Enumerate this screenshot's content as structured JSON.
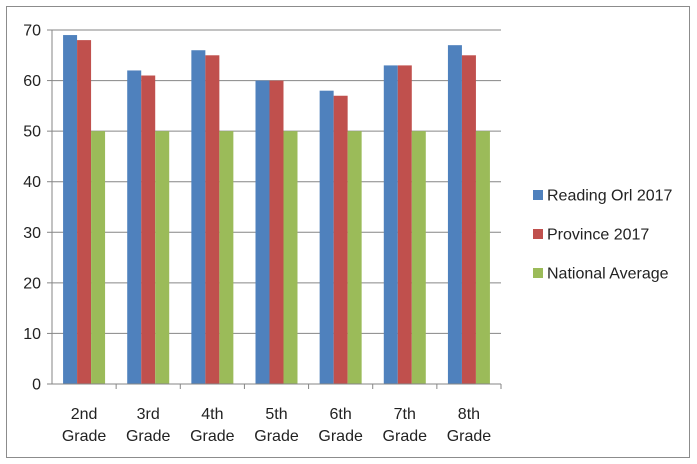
{
  "chart_data": {
    "type": "bar",
    "categories": [
      [
        "2nd",
        "Grade"
      ],
      [
        "3rd",
        "Grade"
      ],
      [
        "4th",
        "Grade"
      ],
      [
        "5th",
        "Grade"
      ],
      [
        "6th",
        "Grade"
      ],
      [
        "7th",
        "Grade"
      ],
      [
        "8th",
        "Grade"
      ]
    ],
    "series": [
      {
        "name": "Reading Orl 2017",
        "color": "#4f81bd",
        "values": [
          69,
          62,
          66,
          60,
          58,
          63,
          67
        ]
      },
      {
        "name": "Province 2017",
        "color": "#c0504d",
        "values": [
          68,
          61,
          65,
          60,
          57,
          63,
          65
        ]
      },
      {
        "name": "National Average",
        "color": "#9bbb59",
        "values": [
          50,
          50,
          50,
          50,
          50,
          50,
          50
        ]
      }
    ],
    "title": "",
    "xlabel": "",
    "ylabel": "",
    "ylim": [
      0,
      70
    ],
    "yticks": [
      0,
      10,
      20,
      30,
      40,
      50,
      60,
      70
    ],
    "grid": true,
    "legend": "right"
  }
}
